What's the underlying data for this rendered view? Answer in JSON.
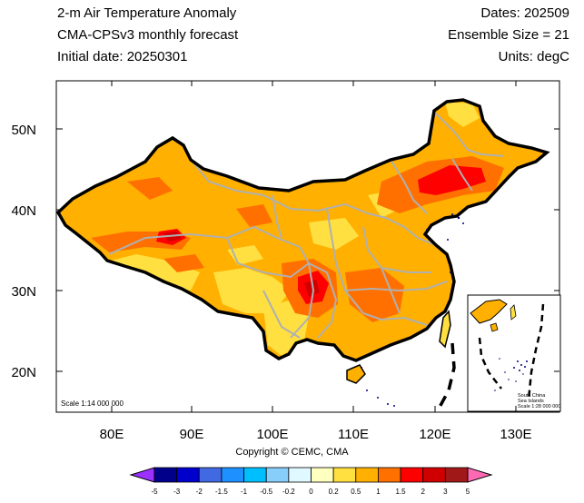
{
  "header": {
    "title": "2-m Air Temperature Anomaly",
    "model": "CMA-CPSv3 monthly forecast",
    "init": "Initial date: 20250301",
    "dates": "Dates: 202509",
    "ensemble": "Ensemble Size = 21",
    "units": "Units: degC"
  },
  "map": {
    "lon_ticks": [
      "80E",
      "90E",
      "100E",
      "110E",
      "120E",
      "130E"
    ],
    "lat_ticks": [
      "50N",
      "40N",
      "30N",
      "20N"
    ],
    "scale_text": "Scale 1:14 000 000",
    "inset_lines": [
      "South China",
      "Sea Islands",
      "Scale 1:28 000 000"
    ],
    "copyright": "Copyright © CEMC, CMA"
  },
  "colorbar": {
    "labels": [
      "-5",
      "-3",
      "-2",
      "-1.5",
      "-1",
      "-0.5",
      "-0.2",
      "0",
      "0.2",
      "0.5",
      "1",
      "1.5",
      "2",
      "3",
      "5"
    ],
    "colors": [
      "#9b30ff",
      "#00008b",
      "#0000cd",
      "#4169e1",
      "#1e90ff",
      "#00bfff",
      "#87cefa",
      "#e0f8ff",
      "#ffffc0",
      "#ffe040",
      "#ffb000",
      "#ff7000",
      "#ff0000",
      "#d00000",
      "#a01818",
      "#ff69b4"
    ]
  },
  "colors": {
    "border": "#000000",
    "province_lines": "#b0b0b0",
    "ocean_coast": "#000080"
  }
}
